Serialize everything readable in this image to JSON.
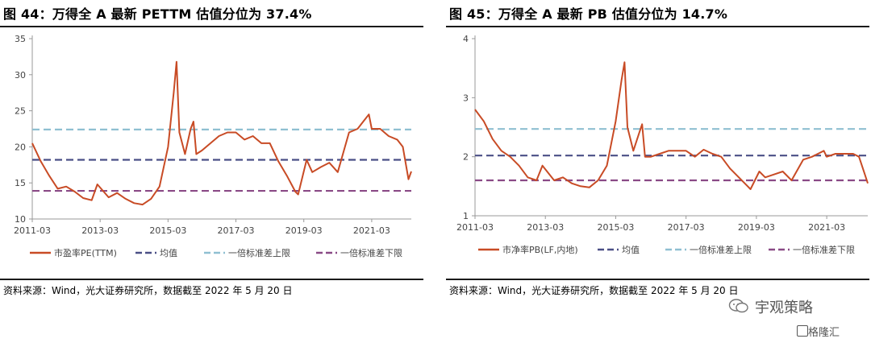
{
  "panels": [
    {
      "title": "图 44：万得全 A 最新 PETTM 估值分位为 37.4%",
      "source": "资料来源：Wind，光大证券研究所，数据截至 2022 年 5 月 20 日",
      "chart_data": {
        "type": "line",
        "x_ticks": [
          "2011-03",
          "2013-03",
          "2015-03",
          "2017-03",
          "2019-03",
          "2021-03"
        ],
        "y_ticks": [
          "10",
          "15",
          "20",
          "25",
          "30",
          "35"
        ],
        "ylim": [
          10,
          35
        ],
        "xlim": [
          "2011-03",
          "2022-05"
        ],
        "grid": false,
        "legend_position": "bottom",
        "series": [
          {
            "name": "市盈率PE(TTM)",
            "color": "#c84b25",
            "style": "solid",
            "points": [
              [
                "2011-03",
                20.5
              ],
              [
                "2011-06",
                18.0
              ],
              [
                "2011-09",
                16.0
              ],
              [
                "2011-12",
                14.2
              ],
              [
                "2012-03",
                14.5
              ],
              [
                "2012-06",
                13.8
              ],
              [
                "2012-09",
                12.9
              ],
              [
                "2012-12",
                12.6
              ],
              [
                "2013-02",
                14.8
              ],
              [
                "2013-06",
                13.0
              ],
              [
                "2013-09",
                13.6
              ],
              [
                "2013-12",
                12.8
              ],
              [
                "2014-03",
                12.2
              ],
              [
                "2014-06",
                12.0
              ],
              [
                "2014-09",
                12.8
              ],
              [
                "2014-12",
                14.5
              ],
              [
                "2015-03",
                20.0
              ],
              [
                "2015-05",
                27.5
              ],
              [
                "2015-06",
                31.8
              ],
              [
                "2015-07",
                22.0
              ],
              [
                "2015-09",
                19.0
              ],
              [
                "2015-11",
                22.5
              ],
              [
                "2015-12",
                23.5
              ],
              [
                "2016-01",
                19.0
              ],
              [
                "2016-03",
                19.5
              ],
              [
                "2016-06",
                20.5
              ],
              [
                "2016-09",
                21.5
              ],
              [
                "2016-12",
                22.0
              ],
              [
                "2017-03",
                22.0
              ],
              [
                "2017-06",
                21.0
              ],
              [
                "2017-09",
                21.5
              ],
              [
                "2017-12",
                20.5
              ],
              [
                "2018-03",
                20.5
              ],
              [
                "2018-06",
                18.0
              ],
              [
                "2018-09",
                16.0
              ],
              [
                "2018-12",
                13.8
              ],
              [
                "2019-01",
                13.4
              ],
              [
                "2019-04",
                18.2
              ],
              [
                "2019-06",
                16.5
              ],
              [
                "2019-09",
                17.2
              ],
              [
                "2019-12",
                17.8
              ],
              [
                "2020-03",
                16.5
              ],
              [
                "2020-07",
                22.0
              ],
              [
                "2020-10",
                22.5
              ],
              [
                "2020-12",
                23.5
              ],
              [
                "2021-02",
                24.5
              ],
              [
                "2021-03",
                22.5
              ],
              [
                "2021-06",
                22.5
              ],
              [
                "2021-09",
                21.5
              ],
              [
                "2021-12",
                21.0
              ],
              [
                "2022-02",
                20.0
              ],
              [
                "2022-04",
                15.5
              ],
              [
                "2022-05",
                16.6
              ]
            ]
          },
          {
            "name": "均值",
            "color": "#4a4f86",
            "style": "dashed",
            "value": 18.2
          },
          {
            "name": "一倍标准差上限",
            "color": "#8fbfd1",
            "style": "dashed",
            "value": 22.4
          },
          {
            "name": "一倍标准差下限",
            "color": "#8a4a86",
            "style": "dashed",
            "value": 13.9
          }
        ]
      }
    },
    {
      "title": "图 45：万得全 A 最新 PB 估值分位为 14.7%",
      "source": "资料来源：Wind，光大证券研究所，数据截至 2022 年 5 月 20 日",
      "chart_data": {
        "type": "line",
        "x_ticks": [
          "2011-03",
          "2013-03",
          "2015-03",
          "2017-03",
          "2019-03",
          "2021-03"
        ],
        "y_ticks": [
          "1",
          "2",
          "3",
          "4"
        ],
        "ylim": [
          1,
          4
        ],
        "xlim": [
          "2011-03",
          "2022-05"
        ],
        "grid": false,
        "legend_position": "bottom",
        "series": [
          {
            "name": "市净率PB(LF,内地)",
            "color": "#c84b25",
            "style": "solid",
            "points": [
              [
                "2011-03",
                2.8
              ],
              [
                "2011-06",
                2.6
              ],
              [
                "2011-09",
                2.3
              ],
              [
                "2011-12",
                2.1
              ],
              [
                "2012-03",
                2.0
              ],
              [
                "2012-06",
                1.85
              ],
              [
                "2012-09",
                1.65
              ],
              [
                "2012-12",
                1.6
              ],
              [
                "2013-02",
                1.85
              ],
              [
                "2013-06",
                1.6
              ],
              [
                "2013-09",
                1.65
              ],
              [
                "2013-12",
                1.55
              ],
              [
                "2014-03",
                1.5
              ],
              [
                "2014-06",
                1.48
              ],
              [
                "2014-09",
                1.6
              ],
              [
                "2014-12",
                1.85
              ],
              [
                "2015-03",
                2.6
              ],
              [
                "2015-05",
                3.3
              ],
              [
                "2015-06",
                3.6
              ],
              [
                "2015-07",
                2.5
              ],
              [
                "2015-09",
                2.1
              ],
              [
                "2015-11",
                2.4
              ],
              [
                "2015-12",
                2.55
              ],
              [
                "2016-01",
                2.0
              ],
              [
                "2016-03",
                2.0
              ],
              [
                "2016-06",
                2.05
              ],
              [
                "2016-09",
                2.1
              ],
              [
                "2016-12",
                2.1
              ],
              [
                "2017-03",
                2.1
              ],
              [
                "2017-06",
                2.0
              ],
              [
                "2017-09",
                2.12
              ],
              [
                "2017-12",
                2.05
              ],
              [
                "2018-03",
                2.0
              ],
              [
                "2018-06",
                1.8
              ],
              [
                "2018-09",
                1.65
              ],
              [
                "2018-12",
                1.5
              ],
              [
                "2019-01",
                1.45
              ],
              [
                "2019-04",
                1.75
              ],
              [
                "2019-06",
                1.65
              ],
              [
                "2019-09",
                1.7
              ],
              [
                "2019-12",
                1.75
              ],
              [
                "2020-03",
                1.6
              ],
              [
                "2020-07",
                1.95
              ],
              [
                "2020-10",
                2.0
              ],
              [
                "2020-12",
                2.05
              ],
              [
                "2021-02",
                2.1
              ],
              [
                "2021-03",
                2.0
              ],
              [
                "2021-06",
                2.05
              ],
              [
                "2021-09",
                2.05
              ],
              [
                "2021-12",
                2.05
              ],
              [
                "2022-02",
                2.0
              ],
              [
                "2022-04",
                1.7
              ],
              [
                "2022-05",
                1.55
              ]
            ]
          },
          {
            "name": "均值",
            "color": "#4a4f86",
            "style": "dashed",
            "value": 2.02
          },
          {
            "name": "一倍标准差上限",
            "color": "#8fbfd1",
            "style": "dashed",
            "value": 2.47
          },
          {
            "name": "一倍标准差下限",
            "color": "#8a4a86",
            "style": "dashed",
            "value": 1.6
          }
        ]
      }
    }
  ],
  "watermark": {
    "text": "宇观策略",
    "icon": "wechat-icon"
  },
  "brand": {
    "text": "格隆汇",
    "icon": "brand-logo-icon"
  }
}
